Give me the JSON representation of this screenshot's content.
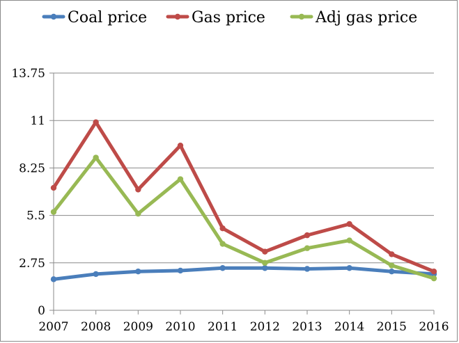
{
  "chart_data": {
    "type": "line",
    "title": "",
    "xlabel": "",
    "ylabel": "",
    "categories": [
      "2007",
      "2008",
      "2009",
      "2010",
      "2011",
      "2012",
      "2013",
      "2014",
      "2015",
      "2016"
    ],
    "ylim": [
      0,
      13.75
    ],
    "y_ticks": [
      "0",
      "2.75",
      "5.5",
      "8.25",
      "11",
      "13.75"
    ],
    "grid": true,
    "legend_position": "top",
    "series": [
      {
        "name": "Coal price",
        "color": "#4a7ebb",
        "values": [
          1.8,
          2.1,
          2.25,
          2.3,
          2.45,
          2.45,
          2.4,
          2.45,
          2.25,
          2.1
        ]
      },
      {
        "name": "Gas price",
        "color": "#be4b48",
        "values": [
          7.1,
          10.9,
          7.0,
          9.55,
          4.75,
          3.4,
          4.35,
          5.0,
          3.25,
          2.25
        ]
      },
      {
        "name": "Adj gas price",
        "color": "#98b954",
        "values": [
          5.7,
          8.85,
          5.6,
          7.6,
          3.85,
          2.75,
          3.6,
          4.05,
          2.6,
          1.85
        ]
      }
    ]
  }
}
